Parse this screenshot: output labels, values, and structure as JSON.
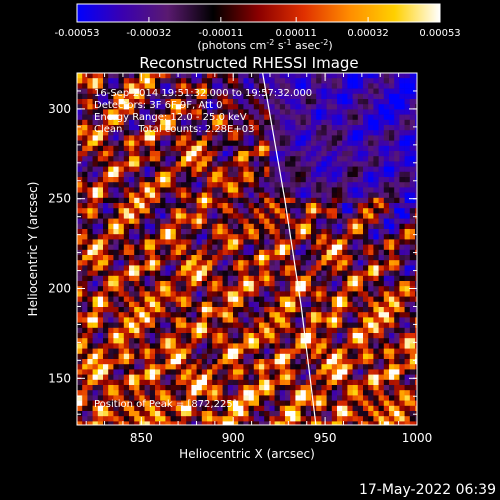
{
  "chart_data": {
    "type": "heatmap",
    "title": "Reconstructed RHESSI Image",
    "xlabel": "Heliocentric X (arcsec)",
    "ylabel": "Heliocentric Y (arcsec)",
    "xlim": [
      815,
      1000
    ],
    "ylim": [
      124,
      320
    ],
    "x_ticks": [
      850,
      900,
      950,
      1000
    ],
    "y_ticks": [
      150,
      200,
      250,
      300
    ],
    "grid": false,
    "colorbar": {
      "min": -0.00053,
      "max": 0.00053,
      "ticks": [
        "-0.00053",
        "-0.00032",
        "-0.00011",
        "0.00011",
        "0.00032",
        "0.00053"
      ],
      "unit_label": "(photons cm",
      "unit_exp1": "-2",
      "unit_mid": " s",
      "unit_exp2": "-1",
      "unit_mid2": " asec",
      "unit_exp3": "-2",
      "unit_end": ")",
      "colors": [
        "#0000ff",
        "#3a00b0",
        "#5a1a70",
        "#000000",
        "#8b0000",
        "#e03000",
        "#ff8c00",
        "#ffd000",
        "#ffffff"
      ]
    },
    "annotations": [
      "16-Sep-2014 19:51:32.000 to 19:57:32.000",
      "Detectors: 3F 6F 9F, Att 0",
      "Energy Range: 12.0 - 25.0 keV",
      "Clean     Total counts: 2.28E+03"
    ],
    "peak_label": "Position of Peak = [872,225]",
    "limb_curve": [
      [
        916,
        320
      ],
      [
        928,
        250
      ],
      [
        937,
        190
      ],
      [
        945,
        124
      ]
    ]
  },
  "timestamp": "17-May-2022 06:39"
}
